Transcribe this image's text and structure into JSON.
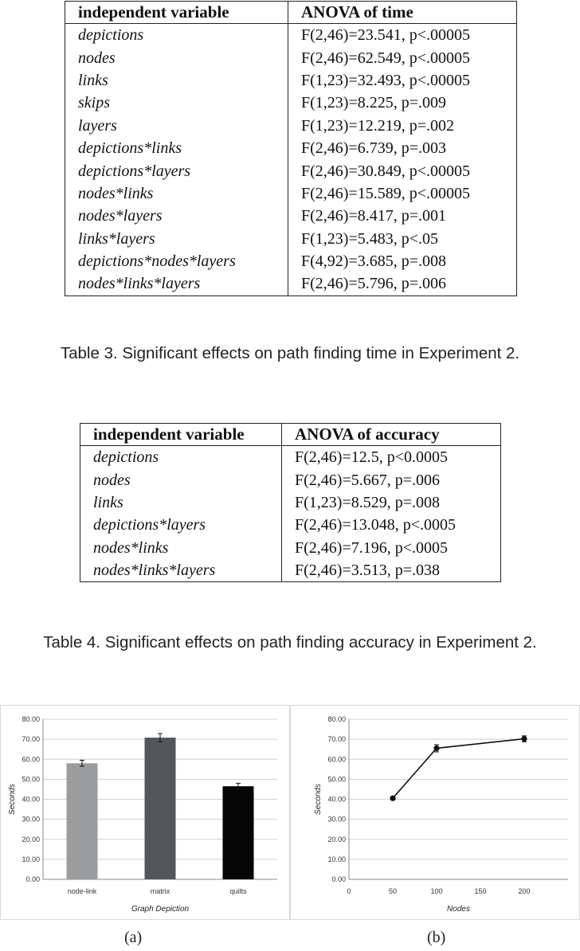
{
  "table3": {
    "headers": [
      "independent variable",
      "ANOVA of time"
    ],
    "rows": [
      [
        "depictions",
        "F(2,46)=23.541, p<.00005"
      ],
      [
        "nodes",
        "F(2,46)=62.549, p<.00005"
      ],
      [
        "links",
        "F(1,23)=32.493, p<.00005"
      ],
      [
        "skips",
        "F(1,23)=8.225, p=.009"
      ],
      [
        "layers",
        "F(1,23)=12.219, p=.002"
      ],
      [
        "depictions*links",
        "F(2,46)=6.739, p=.003"
      ],
      [
        "depictions*layers",
        "F(2,46)=30.849, p<.00005"
      ],
      [
        "nodes*links",
        "F(2,46)=15.589, p<.00005"
      ],
      [
        "nodes*layers",
        "F(2,46)=8.417, p=.001"
      ],
      [
        "links*layers",
        "F(1,23)=5.483, p<.05"
      ],
      [
        "depictions*nodes*layers",
        "F(4,92)=3.685, p=.008"
      ],
      [
        "nodes*links*layers",
        "F(2,46)=5.796, p=.006"
      ]
    ],
    "caption": "Table 3. Significant effects on path finding time in Experiment 2."
  },
  "table4": {
    "headers": [
      "independent variable",
      "ANOVA of accuracy"
    ],
    "rows": [
      [
        "depictions",
        "F(2,46)=12.5, p<0.0005"
      ],
      [
        "nodes",
        "F(2,46)=5.667, p=.006"
      ],
      [
        "links",
        "F(1,23)=8.529, p=.008"
      ],
      [
        "depictions*layers",
        "F(2,46)=13.048, p<.0005"
      ],
      [
        "nodes*links",
        "F(2,46)=7.196, p<.0005"
      ],
      [
        "nodes*links*layers",
        "F(2,46)=3.513, p=.038"
      ]
    ],
    "caption": "Table 4. Significant effects on path finding accuracy in Experiment 2."
  },
  "colors": {
    "bar_node_link": "#9a9c9e",
    "bar_matrix": "#53575a",
    "bar_quilts": "#050505",
    "line": "#111111"
  },
  "chart_data": [
    {
      "type": "bar",
      "label": "(a)",
      "categories": [
        "node-link",
        "matrix",
        "quilts"
      ],
      "values": [
        58.0,
        70.8,
        46.5
      ],
      "error": [
        1.5,
        2.0,
        1.5
      ],
      "xlabel": "Graph Depiction",
      "ylabel": "Seconds",
      "ylim": [
        0,
        80
      ],
      "yticks": [
        "0.00",
        "10.00",
        "20.00",
        "30.00",
        "40.00",
        "50.00",
        "60.00",
        "70.00",
        "80.00"
      ],
      "grid": true
    },
    {
      "type": "line",
      "label": "(b)",
      "x": [
        50,
        100,
        200
      ],
      "values": [
        40.5,
        65.5,
        70.2
      ],
      "error": [
        0.8,
        1.8,
        1.5
      ],
      "xlabel": "Nodes",
      "ylabel": "Seconds",
      "xlim": [
        0,
        250
      ],
      "xticks": [
        "0",
        "50",
        "100",
        "150",
        "200"
      ],
      "ylim": [
        0,
        80
      ],
      "yticks": [
        "0.00",
        "10.00",
        "20.00",
        "30.00",
        "40.00",
        "50.00",
        "60.00",
        "70.00",
        "80.00"
      ],
      "grid": true
    }
  ]
}
